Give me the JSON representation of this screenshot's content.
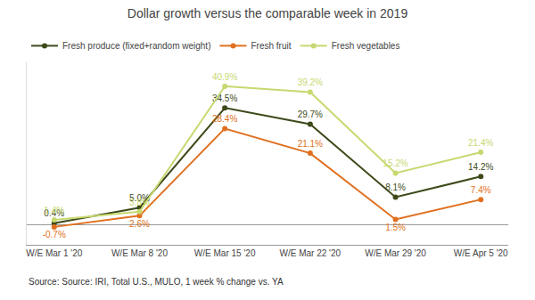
{
  "chart_data": {
    "type": "line",
    "title": "Dollar growth versus the comparable week in 2019",
    "annotations": [
      "Source: Source: IRI, Total U.S., MULO, 1 week % change vs. YA"
    ],
    "categories": [
      "W/E Mar 1 '20",
      "W/E Mar 8 '20",
      "W/E Mar 15 '20",
      "W/E Mar 22 '20",
      "W/E Mar 29 '20",
      "W/E Apr 5 '20"
    ],
    "series": [
      {
        "name": "Fresh produce (fixed+random weight)",
        "color": "#3d4a1a",
        "values": [
          0.4,
          5.0,
          34.5,
          29.7,
          8.1,
          14.2
        ],
        "value_labels": [
          "0.4%",
          "5.0%",
          "34.5%",
          "29.7%",
          "8.1%",
          "14.2%"
        ]
      },
      {
        "name": "Fresh fruit",
        "color": "#e07020",
        "values": [
          -0.7,
          2.6,
          28.4,
          21.1,
          1.5,
          7.4
        ],
        "value_labels": [
          "-0.7%",
          "2.6%",
          "28.4%",
          "21.1%",
          "1.5%",
          "7.4%"
        ]
      },
      {
        "name": "Fresh vegetables",
        "color": "#c8d870",
        "values": [
          1.4,
          3.8,
          40.9,
          39.2,
          15.2,
          21.4
        ],
        "value_labels": [
          "1.4%",
          "3.8%",
          "40.9%",
          "39.2%",
          "15.2%",
          "21.4%"
        ]
      }
    ],
    "ylim": [
      -6,
      48
    ],
    "yticks": [],
    "tick_labels": "x",
    "grid": false,
    "legend": "upper left",
    "data_labels": true,
    "marker": "circle",
    "line_style": "solid"
  }
}
